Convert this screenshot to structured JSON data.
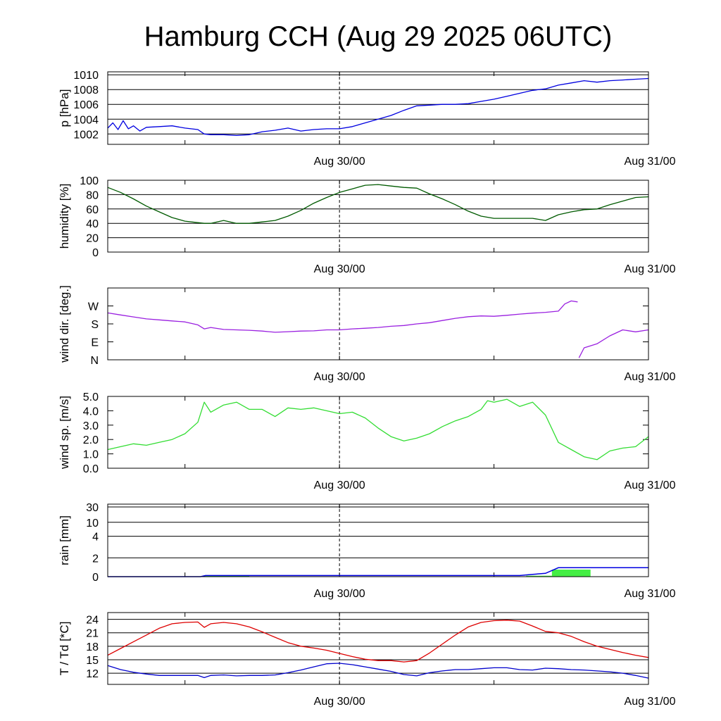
{
  "title": "Hamburg CCH (Aug 29 2025 06UTC)",
  "x_tick_labels": [
    "Aug 30/00",
    "Aug 31/00"
  ],
  "chart_data": [
    {
      "type": "line",
      "ylabel": "p [hPa]",
      "y_tick_labels": [
        "1002",
        "1004",
        "1006",
        "1008",
        "1010"
      ],
      "y_ticks": [
        1002,
        1004,
        1006,
        1008,
        1010
      ],
      "ylim": [
        1000.6,
        1010.4
      ],
      "x_unit": "hours since Aug 29 06UTC",
      "xlim": [
        0,
        42
      ],
      "grid": true,
      "series": [
        {
          "color": "#0000e0",
          "x": [
            0,
            0.4,
            0.8,
            1.2,
            1.6,
            2,
            2.5,
            3,
            4,
            5,
            6,
            7,
            7.5,
            8,
            9,
            10,
            11,
            12,
            13,
            14,
            15,
            16,
            17,
            18,
            19,
            20,
            21,
            22,
            23,
            24,
            25,
            26,
            27,
            28,
            29,
            30,
            31,
            32,
            33,
            34,
            35,
            36,
            37,
            38,
            39,
            40,
            41,
            42
          ],
          "y": [
            1002.8,
            1003.5,
            1002.6,
            1003.8,
            1002.7,
            1003.1,
            1002.4,
            1002.9,
            1003.0,
            1003.1,
            1002.8,
            1002.6,
            1002.0,
            1001.9,
            1001.9,
            1001.8,
            1001.9,
            1002.3,
            1002.5,
            1002.8,
            1002.4,
            1002.6,
            1002.7,
            1002.7,
            1003.0,
            1003.5,
            1004.0,
            1004.5,
            1005.2,
            1005.8,
            1005.9,
            1006.0,
            1006.0,
            1006.1,
            1006.4,
            1006.7,
            1007.1,
            1007.5,
            1007.9,
            1008.1,
            1008.6,
            1008.9,
            1009.2,
            1009.0,
            1009.2,
            1009.3,
            1009.4,
            1009.5
          ]
        }
      ]
    },
    {
      "type": "line",
      "ylabel": "humidity [%]",
      "y_tick_labels": [
        "0",
        "20",
        "40",
        "60",
        "80",
        "100"
      ],
      "y_ticks": [
        0,
        20,
        40,
        60,
        80,
        100
      ],
      "ylim": [
        0,
        100
      ],
      "x_unit": "hours since Aug 29 06UTC",
      "xlim": [
        0,
        42
      ],
      "grid": true,
      "series": [
        {
          "color": "#005a00",
          "x": [
            0,
            1,
            2,
            3,
            4,
            5,
            6,
            7,
            7.5,
            8,
            9,
            10,
            11,
            12,
            13,
            14,
            15,
            16,
            17,
            18,
            19,
            20,
            21,
            22,
            23,
            24,
            25,
            26,
            27,
            28,
            29,
            30,
            31,
            32,
            33,
            34,
            35,
            36,
            37,
            38,
            39,
            40,
            41,
            42
          ],
          "y": [
            90,
            83,
            74,
            64,
            56,
            48,
            43,
            41,
            40,
            40,
            44,
            40,
            40,
            42,
            44,
            50,
            58,
            68,
            76,
            83,
            88,
            93,
            94,
            92,
            90,
            89,
            81,
            74,
            66,
            57,
            50,
            47,
            47,
            47,
            47,
            44,
            52,
            56,
            59,
            60,
            66,
            71,
            76,
            77
          ]
        }
      ]
    },
    {
      "type": "line",
      "ylabel": "wind dir. [deg.]",
      "y_tick_labels": [
        "N",
        "E",
        "S",
        "W"
      ],
      "y_ticks": [
        0,
        90,
        180,
        270
      ],
      "ylim": [
        0,
        360
      ],
      "x_unit": "hours since Aug 29 06UTC",
      "xlim": [
        0,
        42
      ],
      "grid": false,
      "series": [
        {
          "color": "#9a20e0",
          "x": [
            0,
            1,
            2,
            3,
            4,
            5,
            6,
            7,
            7.5,
            8,
            9,
            10,
            11,
            12,
            13,
            14,
            15,
            16,
            17,
            18,
            19,
            20,
            21,
            22,
            23,
            24,
            25,
            26,
            27,
            28,
            29,
            30,
            31,
            32,
            33,
            34,
            35,
            35.5,
            36,
            36.5
          ],
          "y": [
            235,
            225,
            215,
            205,
            200,
            195,
            190,
            175,
            155,
            162,
            152,
            150,
            148,
            144,
            138,
            141,
            144,
            145,
            150,
            150,
            155,
            158,
            162,
            168,
            172,
            180,
            186,
            197,
            208,
            216,
            220,
            218,
            223,
            229,
            234,
            238,
            244,
            280,
            295,
            290
          ]
        },
        {
          "color": "#9a20e0",
          "x": [
            36.6,
            37,
            38,
            39,
            40,
            41,
            42
          ],
          "y": [
            10,
            60,
            80,
            120,
            150,
            140,
            150
          ]
        }
      ]
    },
    {
      "type": "line",
      "ylabel": "wind sp. [m/s]",
      "y_tick_labels": [
        "0.0",
        "1.0",
        "2.0",
        "3.0",
        "4.0",
        "5.0"
      ],
      "y_ticks": [
        0,
        1,
        2,
        3,
        4,
        5
      ],
      "ylim": [
        0,
        5
      ],
      "x_unit": "hours since Aug 29 06UTC",
      "xlim": [
        0,
        42
      ],
      "grid": false,
      "series": [
        {
          "color": "#33dd33",
          "x": [
            0,
            1,
            2,
            3,
            4,
            5,
            6,
            7,
            7.5,
            8,
            9,
            10,
            11,
            12,
            13,
            14,
            15,
            16,
            17,
            18,
            19,
            20,
            21,
            22,
            23,
            24,
            25,
            26,
            27,
            28,
            29,
            29.5,
            30,
            31,
            32,
            33,
            34,
            35,
            36,
            37,
            38,
            39,
            40,
            41,
            42
          ],
          "y": [
            1.3,
            1.5,
            1.7,
            1.6,
            1.8,
            2.0,
            2.4,
            3.2,
            4.6,
            3.9,
            4.4,
            4.6,
            4.1,
            4.1,
            3.6,
            4.2,
            4.1,
            4.2,
            4.0,
            3.8,
            3.9,
            3.5,
            2.8,
            2.2,
            1.9,
            2.1,
            2.4,
            2.9,
            3.3,
            3.6,
            4.1,
            4.7,
            4.6,
            4.8,
            4.3,
            4.6,
            3.7,
            1.8,
            1.3,
            0.8,
            0.6,
            1.2,
            1.4,
            1.5,
            2.2
          ]
        }
      ]
    },
    {
      "type": "bar",
      "ylabel": "rain [mm]",
      "y_tick_labels": [
        "0",
        "2",
        "4",
        "10",
        "30"
      ],
      "y_ticks": [
        0,
        2,
        4,
        10,
        30
      ],
      "y_scale": "nonlinear",
      "x_unit": "hours since Aug 29 06UTC",
      "xlim": [
        0,
        42
      ],
      "grid": true,
      "bars": {
        "color": "#44ee44",
        "x_start": [
          7.5,
          32.5,
          34.5
        ],
        "x_end": [
          11,
          34.5,
          37.5
        ],
        "values": [
          0.12,
          0.1,
          0.75
        ]
      },
      "accumulated": {
        "color": "#0000e0",
        "x": [
          0,
          7.2,
          7.6,
          32,
          33,
          34,
          35,
          42
        ],
        "y": [
          0,
          0,
          0.12,
          0.12,
          0.25,
          0.35,
          0.95,
          0.95
        ]
      }
    },
    {
      "type": "line",
      "ylabel": "T / Td [*C]",
      "y_tick_labels": [
        "12",
        "15",
        "18",
        "21",
        "24"
      ],
      "y_ticks": [
        12,
        15,
        18,
        21,
        24
      ],
      "ylim": [
        9.5,
        25.5
      ],
      "x_unit": "hours since Aug 29 06UTC",
      "xlim": [
        0,
        42
      ],
      "grid": true,
      "series": [
        {
          "name": "T",
          "color": "#dd0000",
          "x": [
            0,
            1,
            2,
            3,
            4,
            5,
            6,
            7,
            7.5,
            8,
            9,
            10,
            11,
            12,
            13,
            14,
            15,
            16,
            17,
            18,
            19,
            20,
            21,
            22,
            23,
            24,
            25,
            26,
            27,
            28,
            29,
            30,
            31,
            32,
            33,
            34,
            35,
            36,
            37,
            38,
            39,
            40,
            41,
            42
          ],
          "y": [
            16.0,
            17.5,
            19.0,
            20.5,
            22.0,
            23.0,
            23.3,
            23.4,
            22.2,
            23.0,
            23.3,
            23.0,
            22.3,
            21.2,
            20.0,
            18.8,
            18.0,
            17.6,
            17.1,
            16.4,
            15.7,
            15.1,
            14.8,
            14.8,
            14.5,
            14.8,
            16.5,
            18.5,
            20.5,
            22.3,
            23.3,
            23.7,
            23.8,
            23.6,
            22.5,
            21.3,
            21.0,
            20.2,
            19.0,
            18.0,
            17.3,
            16.6,
            16.0,
            15.5
          ]
        },
        {
          "name": "Td",
          "color": "#0000cc",
          "x": [
            0,
            1,
            2,
            3,
            4,
            5,
            6,
            7,
            7.5,
            8,
            9,
            10,
            11,
            12,
            13,
            14,
            15,
            16,
            17,
            18,
            19,
            20,
            21,
            22,
            23,
            24,
            25,
            26,
            27,
            28,
            29,
            30,
            31,
            32,
            33,
            34,
            35,
            36,
            37,
            38,
            39,
            40,
            41,
            42
          ],
          "y": [
            13.7,
            12.8,
            12.2,
            11.8,
            11.5,
            11.5,
            11.5,
            11.5,
            11.0,
            11.5,
            11.6,
            11.4,
            11.5,
            11.5,
            11.6,
            12.1,
            12.7,
            13.4,
            14.1,
            14.2,
            13.9,
            13.4,
            12.9,
            12.4,
            11.7,
            11.4,
            12.1,
            12.5,
            12.8,
            12.8,
            13.0,
            13.2,
            13.2,
            12.8,
            12.7,
            13.1,
            13.0,
            12.8,
            12.7,
            12.5,
            12.3,
            12.0,
            11.5,
            10.9
          ]
        }
      ]
    }
  ]
}
